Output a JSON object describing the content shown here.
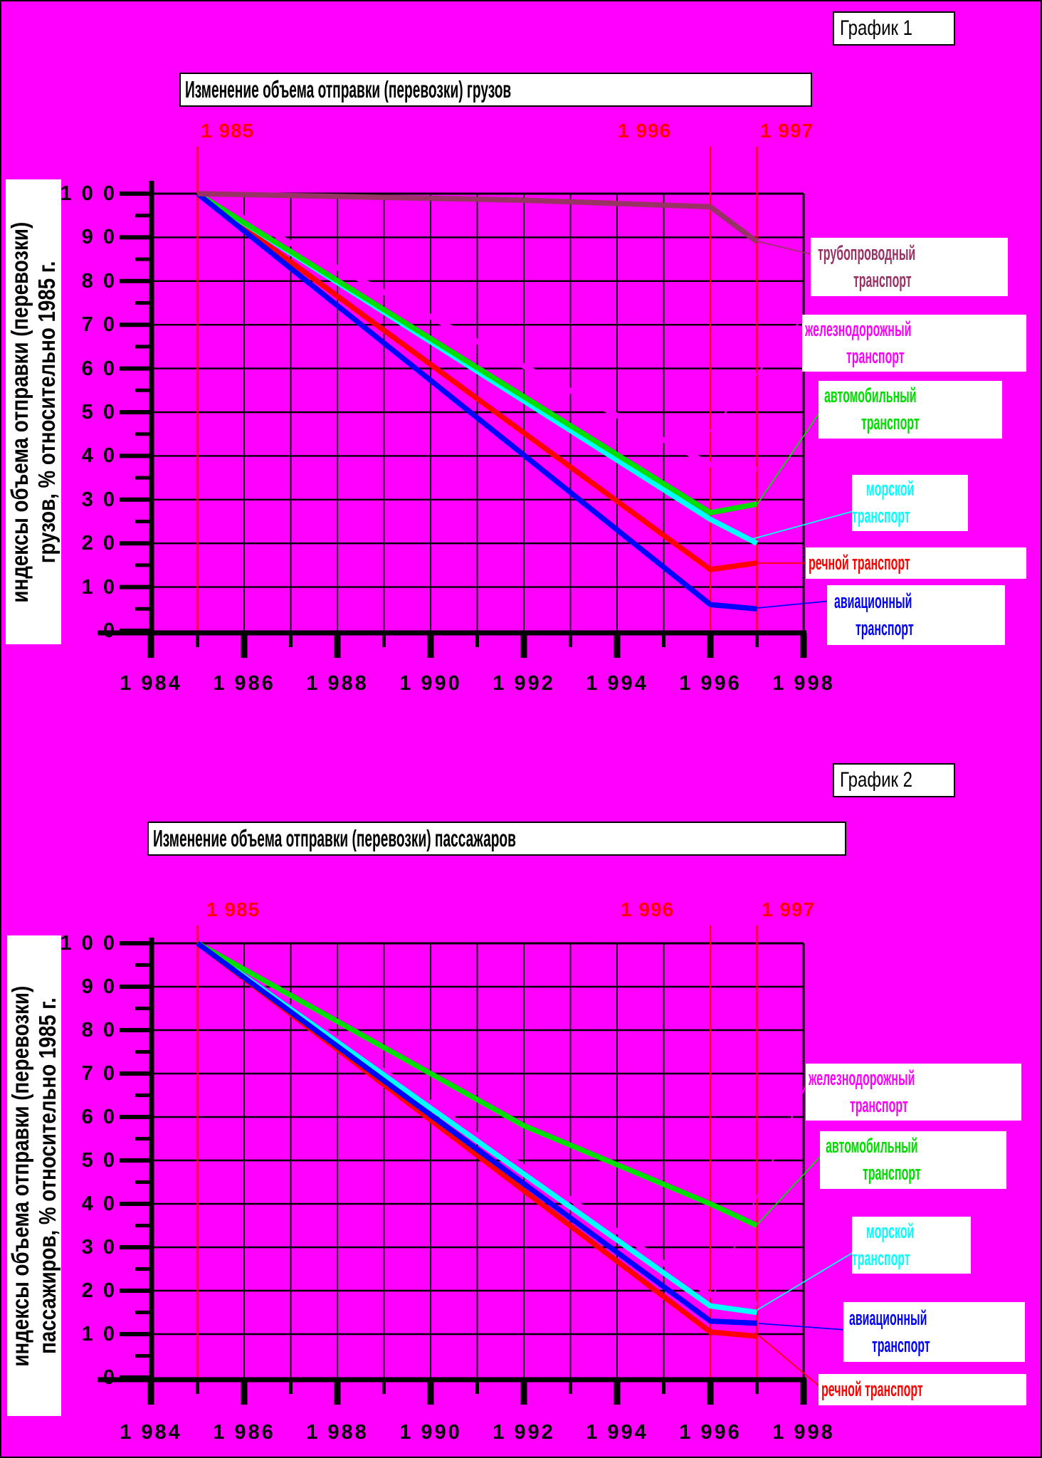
{
  "page": {
    "background_color": "#FF00FF",
    "border_color": "#000000"
  },
  "chart_data": [
    {
      "type": "line",
      "header": "График 1",
      "title": "Изменение объема отправки (перевозки) грузов",
      "ylabel_line1": "индексы объема отправки (перевозки)",
      "ylabel_line2": "грузов, % относительно 1985 г.",
      "xlim": [
        1984,
        1998
      ],
      "ylim": [
        0,
        100
      ],
      "grid": true,
      "legend_position": "right",
      "x_tick_years": [
        1984,
        1986,
        1988,
        1990,
        1992,
        1994,
        1996,
        1998
      ],
      "x_tick_labels": [
        "1 984",
        "1 986",
        "1 988",
        "1 990",
        "1 992",
        "1 994",
        "1 996",
        "1 998"
      ],
      "y_tick_values": [
        100,
        90,
        80,
        70,
        60,
        50,
        40,
        30,
        20,
        10,
        0
      ],
      "y_tick_labels": [
        "1 0 0",
        "9 0",
        "8 0",
        "7 0",
        "6 0",
        "5 0",
        "4 0",
        "3 0",
        "2 0",
        "1 0",
        "0"
      ],
      "marker_color": "#FF0000",
      "markers": [
        {
          "label": "1 985",
          "year": 1985
        },
        {
          "label": "1 996",
          "year": 1996
        },
        {
          "label": "1 997",
          "year": 1997
        }
      ],
      "series": [
        {
          "name": "трубопроводный транспорт",
          "label_line1": "трубопроводный",
          "label_line2": "транспорт",
          "color": "#993366",
          "points": [
            [
              1985,
              100
            ],
            [
              1992,
              98.5
            ],
            [
              1996,
              97
            ],
            [
              1997,
              89
            ]
          ]
        },
        {
          "name": "железнодорожный транспорт",
          "label_line1": "железнодорожный",
          "label_line2": "транспорт",
          "color": "#FF00FF",
          "points": [
            [
              1985,
              100
            ],
            [
              1996,
              38
            ],
            [
              1997,
              37
            ]
          ]
        },
        {
          "name": "автомобильный транспорт",
          "label_line1": "автомобильный",
          "label_line2": "транспорт",
          "color": "#00DD00",
          "points": [
            [
              1985,
              100
            ],
            [
              1996,
              27
            ],
            [
              1997,
              29
            ]
          ]
        },
        {
          "name": "морской транспорт",
          "label_line1": "морской",
          "label_line2": "транспорт",
          "color": "#00FFFF",
          "points": [
            [
              1985,
              100
            ],
            [
              1996,
              25.5
            ],
            [
              1997,
              20
            ]
          ]
        },
        {
          "name": "речной транспорт",
          "label_line1": "речной транспорт",
          "label_line2": "",
          "color": "#FF0000",
          "points": [
            [
              1985,
              100
            ],
            [
              1996,
              14
            ],
            [
              1997,
              15.5
            ]
          ]
        },
        {
          "name": "авиационный транспорт",
          "label_line1": "авиационный",
          "label_line2": "транспорт",
          "color": "#0000FF",
          "points": [
            [
              1985,
              100
            ],
            [
              1996,
              6
            ],
            [
              1997,
              5
            ]
          ]
        }
      ]
    },
    {
      "type": "line",
      "header": "График 2",
      "title": "Изменение объема отправки (перевозки) пассажаров",
      "ylabel_line1": "индексы объема отправки (перевозки)",
      "ylabel_line2": "пассажиров, % относительно 1985 г.",
      "xlim": [
        1984,
        1998
      ],
      "ylim": [
        0,
        100
      ],
      "grid": true,
      "legend_position": "right",
      "x_tick_years": [
        1984,
        1986,
        1988,
        1990,
        1992,
        1994,
        1996,
        1998
      ],
      "x_tick_labels": [
        "1 984",
        "1 986",
        "1 988",
        "1 990",
        "1 992",
        "1 994",
        "1 996",
        "1 998"
      ],
      "y_tick_values": [
        100,
        90,
        80,
        70,
        60,
        50,
        40,
        30,
        20,
        10,
        0
      ],
      "y_tick_labels": [
        "1 0 0",
        "9 0",
        "8 0",
        "7 0",
        "6 0",
        "5 0",
        "4 0",
        "3 0",
        "2 0",
        "1 0",
        "0"
      ],
      "marker_color": "#FF0000",
      "markers": [
        {
          "label": "1 985",
          "year": 1985
        },
        {
          "label": "1 996",
          "year": 1996
        },
        {
          "label": "1 997",
          "year": 1997
        }
      ],
      "series": [
        {
          "name": "железнодорожный транспорт",
          "label_line1": "железнодорожный",
          "label_line2": "транспорт",
          "color": "#FF00FF",
          "points": [
            [
              1985,
              100
            ],
            [
              1996,
              19
            ],
            [
              1997,
              17
            ]
          ]
        },
        {
          "name": "автомобильный транспорт",
          "label_line1": "автомобильный",
          "label_line2": "транспорт",
          "color": "#00DD00",
          "points": [
            [
              1985,
              100
            ],
            [
              1992,
              58
            ],
            [
              1996,
              40
            ],
            [
              1997,
              35
            ]
          ]
        },
        {
          "name": "морской транспорт",
          "label_line1": "морской",
          "label_line2": "транспорт",
          "color": "#00FFFF",
          "points": [
            [
              1985,
              100
            ],
            [
              1996,
              16.5
            ],
            [
              1997,
              15
            ]
          ]
        },
        {
          "name": "авиационный транспорт",
          "label_line1": "авиационный",
          "label_line2": "транспорт",
          "color": "#0000FF",
          "points": [
            [
              1985,
              100
            ],
            [
              1996,
              13
            ],
            [
              1997,
              12.5
            ]
          ]
        },
        {
          "name": "речной транспорт",
          "label_line1": "речной транспорт",
          "label_line2": "",
          "color": "#FF0000",
          "points": [
            [
              1985,
              100
            ],
            [
              1996,
              10.5
            ],
            [
              1997,
              9.5
            ]
          ]
        }
      ]
    }
  ]
}
